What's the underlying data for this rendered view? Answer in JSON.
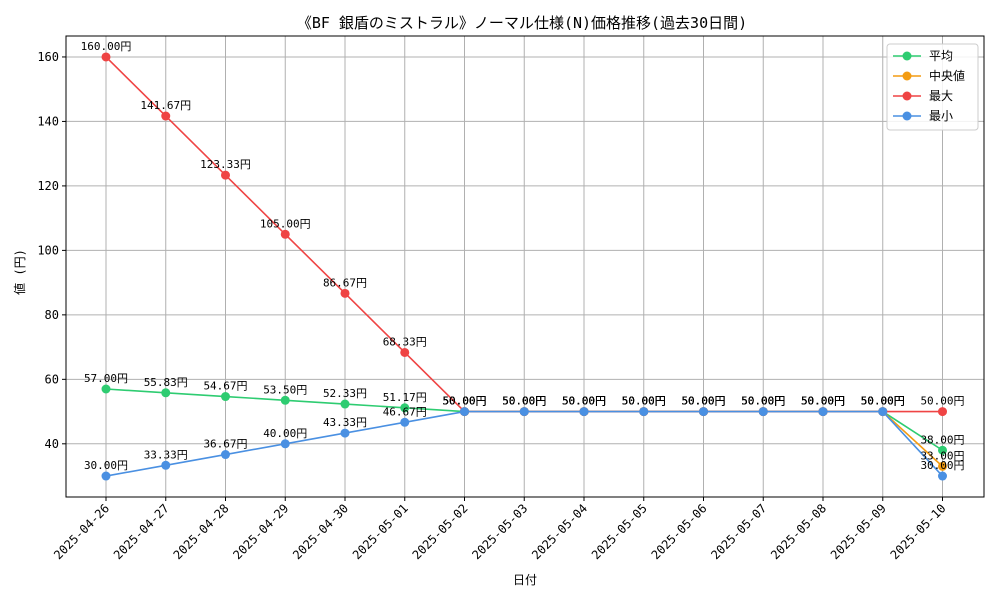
{
  "chart_data": {
    "type": "line",
    "title": "《BF 銀盾のミストラル》ノーマル仕様(N)価格推移(過去30日間)",
    "xlabel": "日付",
    "ylabel": "値 (円)",
    "ylim": [
      23.5,
      166.5
    ],
    "yticks": [
      40,
      60,
      80,
      100,
      120,
      140,
      160
    ],
    "grid": true,
    "legend_position": "top-right",
    "label_suffix": "円",
    "categories": [
      "2025-04-26",
      "2025-04-27",
      "2025-04-28",
      "2025-04-29",
      "2025-04-30",
      "2025-05-01",
      "2025-05-02",
      "2025-05-03",
      "2025-05-04",
      "2025-05-05",
      "2025-05-06",
      "2025-05-07",
      "2025-05-08",
      "2025-05-09",
      "2025-05-10"
    ],
    "series": [
      {
        "name": "平均",
        "color": "#2ecc71",
        "values": [
          57.0,
          55.83,
          54.67,
          53.5,
          52.33,
          51.17,
          50.0,
          50.0,
          50.0,
          50.0,
          50.0,
          50.0,
          50.0,
          50.0,
          38.0
        ]
      },
      {
        "name": "中央値",
        "color": "#f39c12",
        "values": [
          null,
          null,
          null,
          null,
          null,
          null,
          50.0,
          50.0,
          50.0,
          50.0,
          50.0,
          50.0,
          50.0,
          50.0,
          33.0
        ]
      },
      {
        "name": "最大",
        "color": "#ef4444",
        "values": [
          160.0,
          141.67,
          123.33,
          105.0,
          86.67,
          68.33,
          50.0,
          50.0,
          50.0,
          50.0,
          50.0,
          50.0,
          50.0,
          50.0,
          50.0
        ]
      },
      {
        "name": "最小",
        "color": "#4a90e2",
        "values": [
          30.0,
          33.33,
          36.67,
          40.0,
          43.33,
          46.67,
          50.0,
          50.0,
          50.0,
          50.0,
          50.0,
          50.0,
          50.0,
          50.0,
          30.0
        ]
      }
    ],
    "legend_labels": [
      "平均",
      " 中央値",
      "最大",
      "最小"
    ]
  }
}
